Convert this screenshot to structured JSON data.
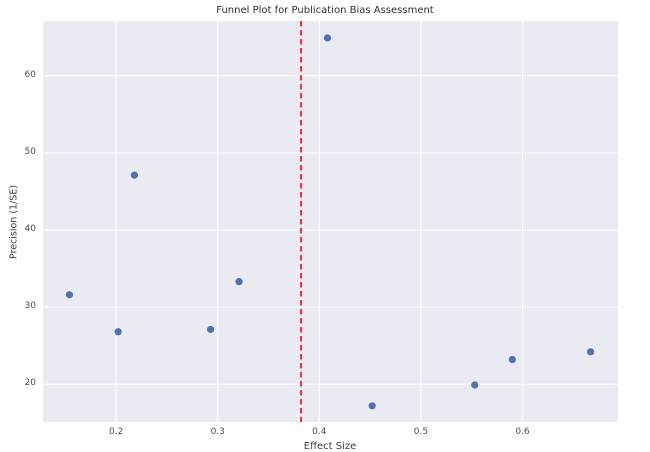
{
  "chart_data": {
    "type": "scatter",
    "title": "Funnel Plot for Publication Bias Assessment",
    "xlabel": "Effect Size",
    "ylabel": "Precision (1/SE)",
    "xlim": [
      0.128,
      0.694
    ],
    "ylim": [
      15.1,
      67.1
    ],
    "x_ticks": [
      0.2,
      0.3,
      0.4,
      0.5,
      0.6
    ],
    "y_ticks": [
      20,
      30,
      40,
      50,
      60
    ],
    "grid": true,
    "legend": false,
    "background_color": "#eaeaf2",
    "grid_color": "#ffffff",
    "point_color": "#4C72B0",
    "points": [
      {
        "x": 0.154,
        "y": 31.6
      },
      {
        "x": 0.202,
        "y": 26.8
      },
      {
        "x": 0.218,
        "y": 47.1
      },
      {
        "x": 0.293,
        "y": 27.1
      },
      {
        "x": 0.321,
        "y": 33.3
      },
      {
        "x": 0.408,
        "y": 64.9
      },
      {
        "x": 0.452,
        "y": 17.2
      },
      {
        "x": 0.553,
        "y": 19.9
      },
      {
        "x": 0.59,
        "y": 23.2
      },
      {
        "x": 0.667,
        "y": 24.2
      }
    ],
    "reference_line": {
      "orientation": "vertical",
      "x": 0.382,
      "color": "#ff0000",
      "style": "dashed"
    }
  }
}
